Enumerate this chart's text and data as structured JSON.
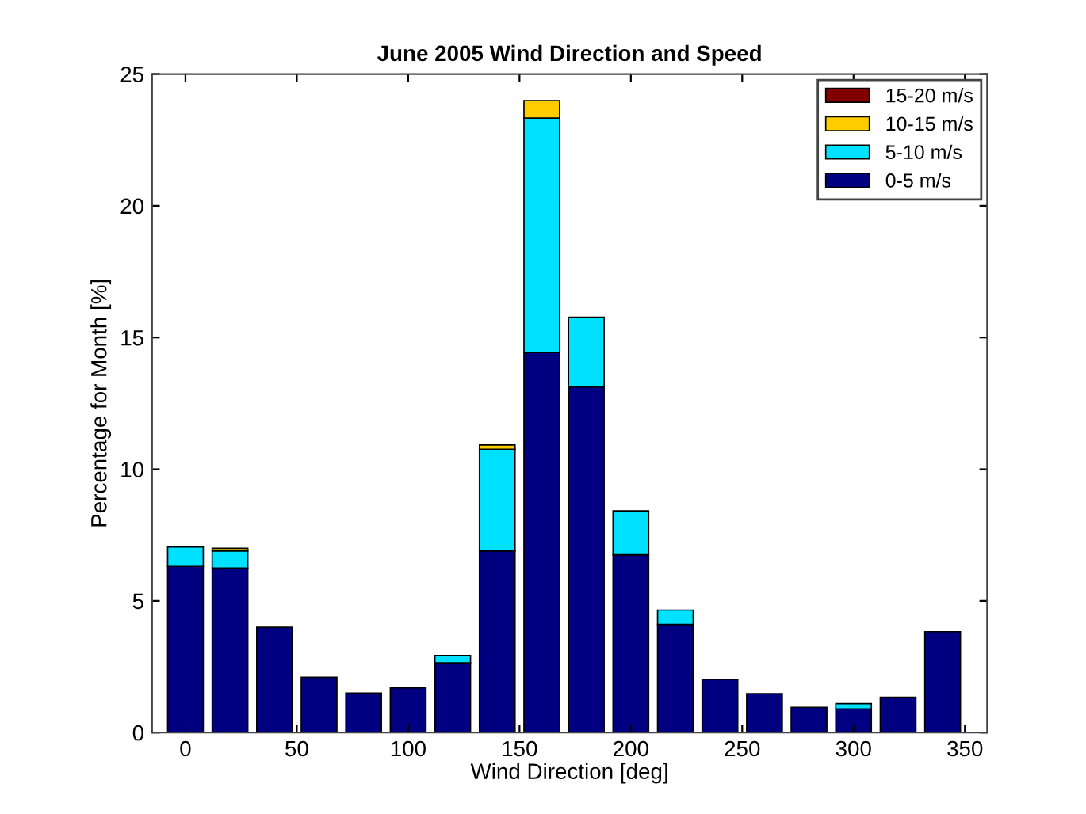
{
  "chart_data": {
    "type": "bar",
    "stacked": true,
    "title": "June 2005 Wind Direction and Speed",
    "xlabel": "Wind Direction [deg]",
    "ylabel": "Percentage for Month [%]",
    "x": [
      0,
      20,
      40,
      60,
      80,
      100,
      120,
      140,
      160,
      180,
      200,
      220,
      240,
      260,
      280,
      300,
      320,
      340
    ],
    "series": [
      {
        "name": "0-5 m/s",
        "color": "#000080",
        "values": [
          6.31,
          6.25,
          4.0,
          2.1,
          1.5,
          1.7,
          2.65,
          6.9,
          14.43,
          13.13,
          6.75,
          4.11,
          2.02,
          1.48,
          0.96,
          0.9,
          1.34,
          3.83
        ]
      },
      {
        "name": "5-10 m/s",
        "color": "#00e0ff",
        "values": [
          0.74,
          0.65,
          null,
          null,
          null,
          null,
          0.28,
          3.86,
          8.9,
          2.64,
          1.67,
          0.54,
          null,
          null,
          null,
          0.2,
          null,
          null
        ]
      },
      {
        "name": "10-15 m/s",
        "color": "#ffcc00",
        "values": [
          null,
          0.1,
          null,
          null,
          null,
          null,
          null,
          0.16,
          0.66,
          null,
          null,
          null,
          null,
          null,
          null,
          null,
          null,
          null
        ]
      },
      {
        "name": "15-20 m/s",
        "color": "#800000",
        "values": [
          null,
          null,
          null,
          null,
          null,
          null,
          null,
          null,
          null,
          null,
          null,
          null,
          null,
          null,
          null,
          null,
          null,
          null
        ]
      }
    ],
    "xlim": [
      -15,
      360
    ],
    "ylim": [
      0,
      25
    ],
    "xticks": [
      0,
      50,
      100,
      150,
      200,
      250,
      300,
      350
    ],
    "yticks": [
      0,
      5,
      10,
      15,
      20,
      25
    ],
    "grid": false,
    "legend": "top right"
  }
}
